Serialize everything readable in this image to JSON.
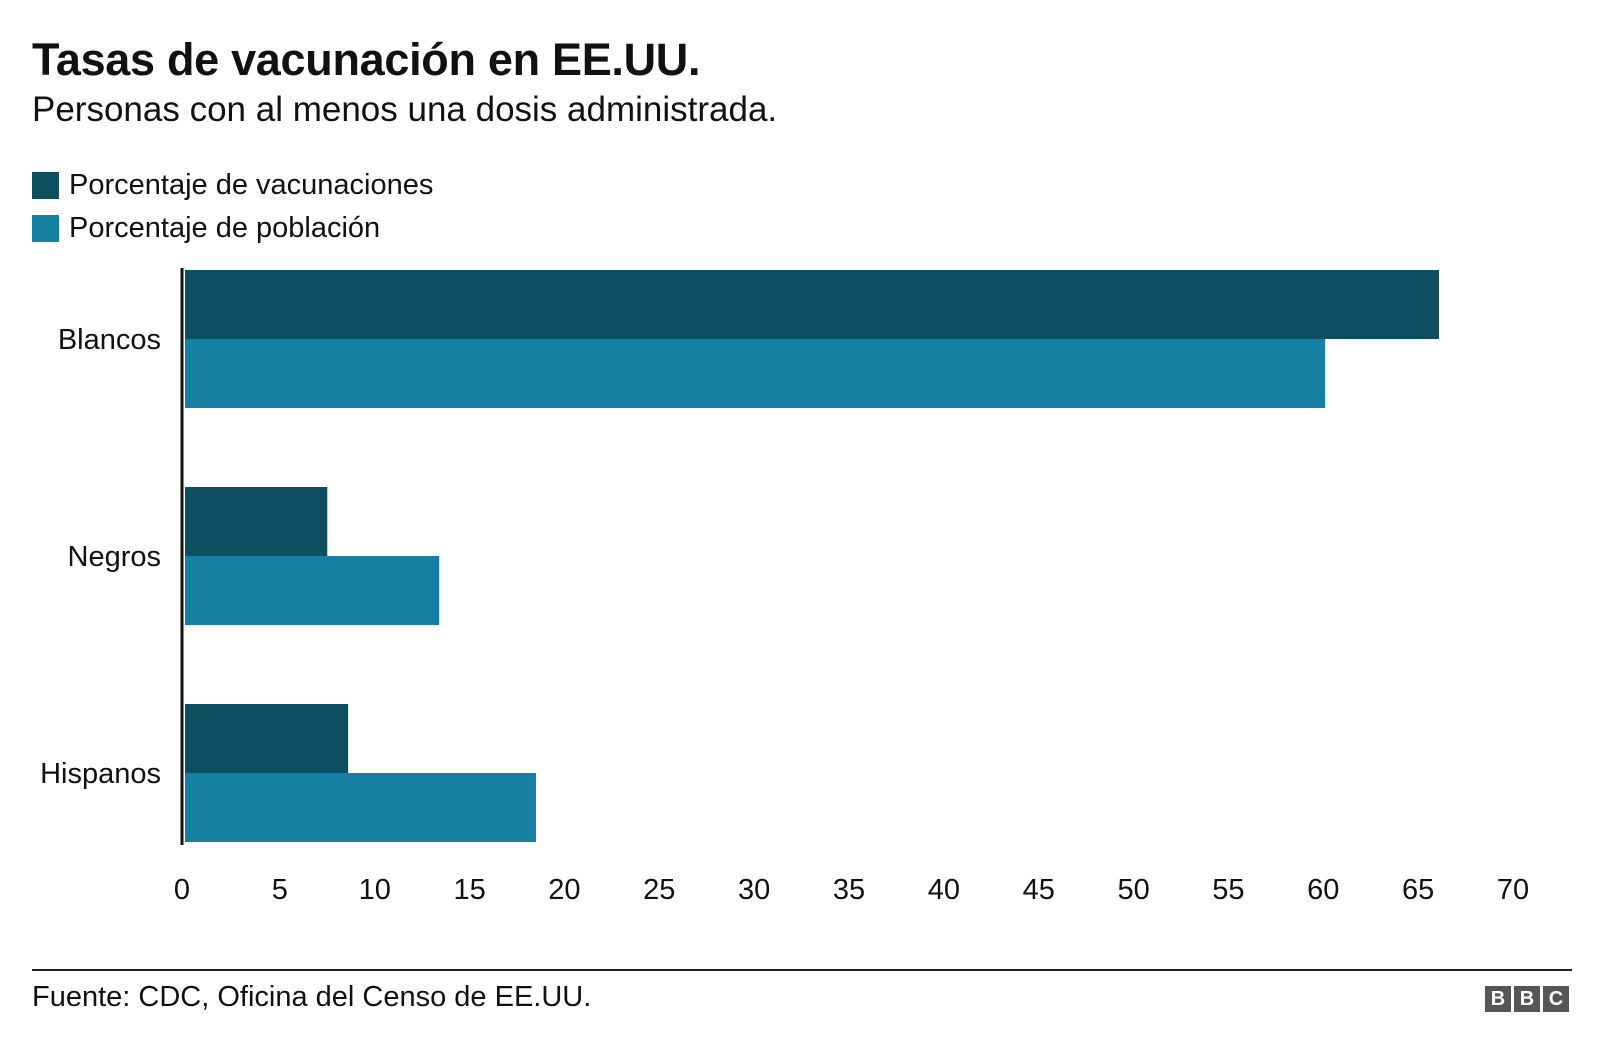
{
  "title": "Tasas de vacunación en EE.UU.",
  "subtitle": "Personas con al menos una dosis administrada.",
  "source": "Fuente: CDC, Oficina del Censo de EE.UU.",
  "logo": [
    "B",
    "B",
    "C"
  ],
  "colors": {
    "vacunaciones": "#0d4f60",
    "poblacion": "#1580a1",
    "axis": "#111111"
  },
  "chart_data": {
    "type": "bar",
    "orientation": "horizontal",
    "title": "Tasas de vacunación en EE.UU.",
    "subtitle": "Personas con al menos una dosis administrada.",
    "categories": [
      "Blancos",
      "Negros",
      "Hispanos"
    ],
    "series": [
      {
        "name": "Porcentaje de vacunaciones",
        "color": "#0d4f60",
        "values": [
          66.1,
          7.5,
          8.6
        ]
      },
      {
        "name": "Porcentaje de población",
        "color": "#1580a1",
        "values": [
          60.1,
          13.4,
          18.5
        ]
      }
    ],
    "xlim": [
      0,
      70
    ],
    "xticks": [
      0,
      5,
      10,
      15,
      20,
      25,
      30,
      35,
      40,
      45,
      50,
      55,
      60,
      65,
      70
    ],
    "grid": false,
    "legend": "top-left"
  }
}
